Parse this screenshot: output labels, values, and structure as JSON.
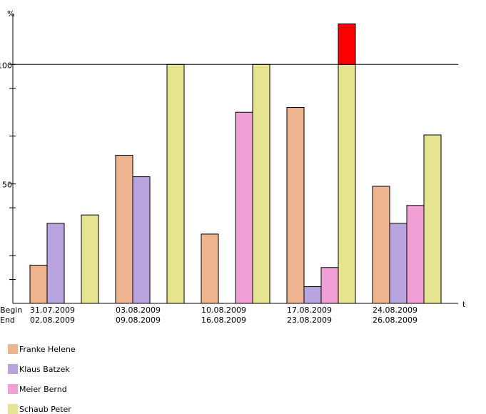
{
  "chart_data": {
    "type": "bar",
    "y_label": "%",
    "x_label": "t",
    "row_labels": [
      "Begin",
      "End"
    ],
    "categories": [
      [
        "31.07.2009",
        "02.08.2009"
      ],
      [
        "03.08.2009",
        "09.08.2009"
      ],
      [
        "10.08.2009",
        "16.08.2009"
      ],
      [
        "17.08.2009",
        "23.08.2009"
      ],
      [
        "24.08.2009",
        "26.08.2009"
      ]
    ],
    "series": [
      {
        "name": "Franke Helene",
        "color": "#edb48e",
        "values": [
          16,
          62,
          29,
          82,
          49
        ]
      },
      {
        "name": "Klaus Batzek",
        "color": "#b8a5e0",
        "values": [
          33.5,
          53,
          null,
          7,
          33.5
        ]
      },
      {
        "name": "Meier Bernd",
        "color": "#f0a0d4",
        "values": [
          null,
          null,
          80,
          15,
          41
        ]
      },
      {
        "name": "Schaub Peter",
        "color": "#e6e48f",
        "values": [
          37,
          100,
          100,
          117,
          70.5
        ]
      }
    ],
    "limit": 100,
    "over_limit_color": "#ff0000",
    "ylim": [
      0,
      121
    ],
    "yticks": [
      50,
      100
    ],
    "minor_yticks": [
      10,
      20,
      40,
      70,
      90
    ]
  }
}
